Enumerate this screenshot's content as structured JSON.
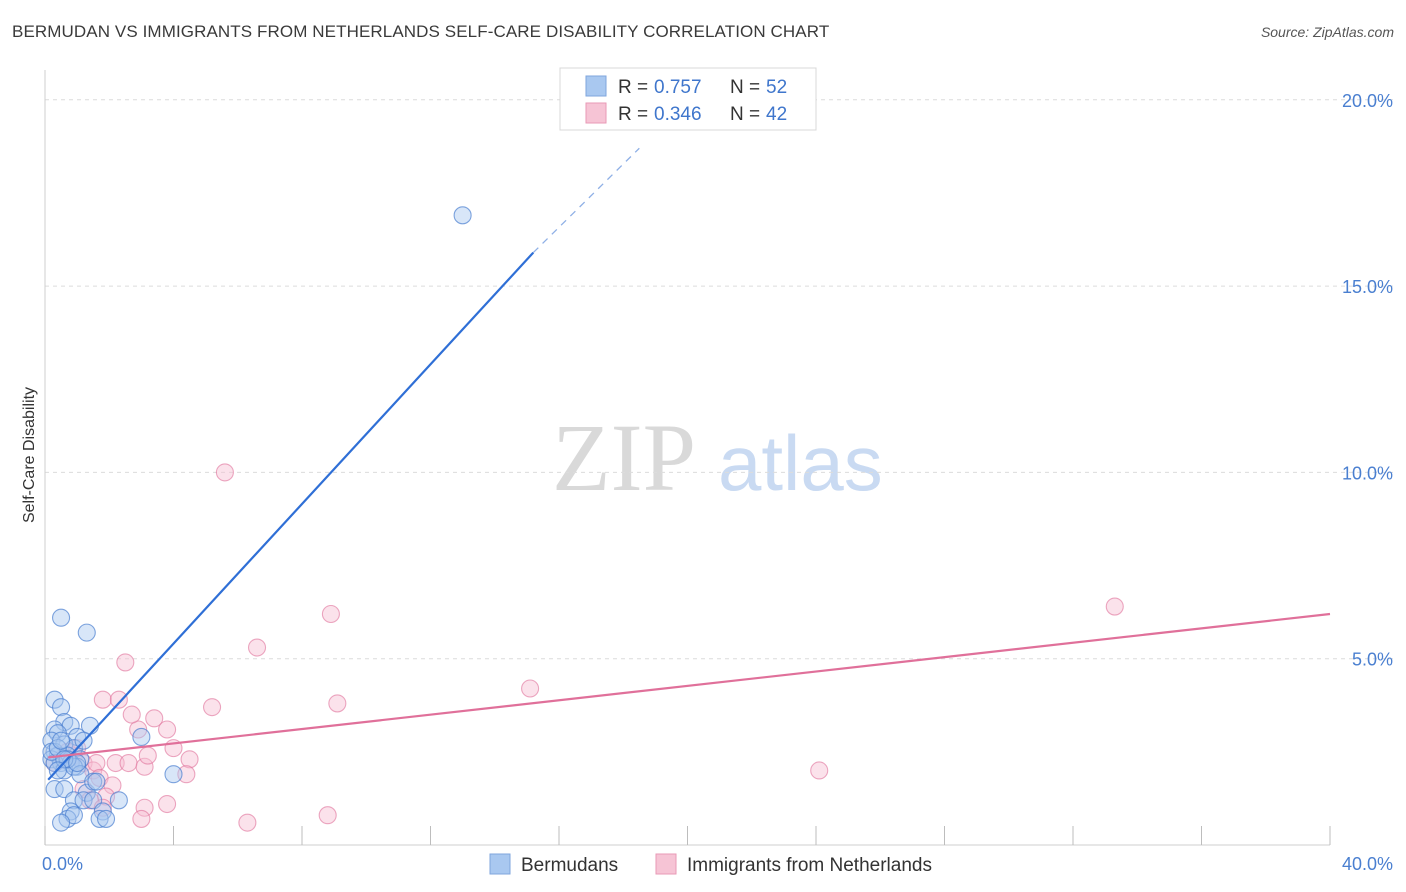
{
  "title": "BERMUDAN VS IMMIGRANTS FROM NETHERLANDS SELF-CARE DISABILITY CORRELATION CHART",
  "source": "Source: ZipAtlas.com",
  "watermark": {
    "zip": "ZIP",
    "atlas": "atlas"
  },
  "colors": {
    "blue": "#4a7fd0",
    "blue_fill": "#a9c8f0",
    "pink": "#e0709a",
    "pink_fill": "#f6bfd2",
    "grid": "#dcdcdc"
  },
  "chart_data": {
    "type": "scatter",
    "title": "BERMUDAN VS IMMIGRANTS FROM NETHERLANDS SELF-CARE DISABILITY CORRELATION CHART",
    "xlabel": "",
    "ylabel": "Self-Care Disability",
    "xlim": [
      0,
      40
    ],
    "ylim": [
      0,
      20.8
    ],
    "x_tick_labels": [
      "0.0%",
      "40.0%"
    ],
    "y_ticks": [
      5,
      10,
      15,
      20
    ],
    "y_tick_labels": [
      "5.0%",
      "10.0%",
      "15.0%",
      "20.0%"
    ],
    "legend": [
      {
        "name": "Bermudans",
        "r_label": "R =",
        "r": "0.757",
        "n_label": "N =",
        "n": "52"
      },
      {
        "name": "Immigrants from Netherlands",
        "r_label": "R =",
        "r": "0.346",
        "n_label": "N =",
        "n": "42"
      }
    ],
    "series": [
      {
        "name": "Bermudans",
        "color": "#4a7fd0",
        "trend": {
          "x0": 0.1,
          "y0": 1.75,
          "x1": 15.2,
          "y1": 15.9,
          "dash_to_x": 18.5,
          "dash_to_y": 18.7
        },
        "points": [
          [
            13.0,
            16.9
          ],
          [
            0.5,
            6.1
          ],
          [
            1.3,
            5.7
          ],
          [
            0.3,
            3.9
          ],
          [
            0.5,
            3.7
          ],
          [
            0.6,
            3.3
          ],
          [
            0.8,
            3.2
          ],
          [
            0.3,
            3.1
          ],
          [
            0.4,
            3.0
          ],
          [
            1.0,
            2.9
          ],
          [
            1.4,
            3.2
          ],
          [
            0.2,
            2.8
          ],
          [
            0.6,
            2.7
          ],
          [
            0.9,
            2.6
          ],
          [
            0.3,
            2.5
          ],
          [
            0.4,
            2.4
          ],
          [
            0.7,
            2.4
          ],
          [
            1.1,
            2.3
          ],
          [
            0.2,
            2.3
          ],
          [
            0.5,
            2.2
          ],
          [
            0.8,
            2.2
          ],
          [
            1.0,
            2.1
          ],
          [
            0.3,
            2.2
          ],
          [
            0.6,
            2.0
          ],
          [
            0.9,
            2.1
          ],
          [
            0.2,
            2.5
          ],
          [
            0.4,
            2.6
          ],
          [
            0.7,
            2.3
          ],
          [
            1.2,
            2.8
          ],
          [
            3.0,
            2.9
          ],
          [
            0.6,
            2.3
          ],
          [
            1.1,
            1.9
          ],
          [
            1.3,
            1.4
          ],
          [
            1.5,
            1.7
          ],
          [
            4.0,
            1.9
          ],
          [
            0.3,
            1.5
          ],
          [
            0.6,
            1.5
          ],
          [
            0.9,
            1.2
          ],
          [
            1.2,
            1.2
          ],
          [
            1.5,
            1.2
          ],
          [
            2.3,
            1.2
          ],
          [
            1.6,
            1.7
          ],
          [
            0.8,
            0.9
          ],
          [
            1.8,
            0.9
          ],
          [
            0.7,
            0.7
          ],
          [
            0.9,
            0.8
          ],
          [
            0.5,
            0.6
          ],
          [
            1.7,
            0.7
          ],
          [
            1.9,
            0.7
          ],
          [
            1.0,
            2.2
          ],
          [
            0.4,
            2.0
          ],
          [
            0.5,
            2.8
          ]
        ]
      },
      {
        "name": "Immigrants from Netherlands",
        "color": "#e0709a",
        "trend": {
          "x0": 0.1,
          "y0": 2.35,
          "x1": 40.0,
          "y1": 6.2
        },
        "points": [
          [
            5.6,
            10.0
          ],
          [
            8.9,
            6.2
          ],
          [
            33.3,
            6.4
          ],
          [
            6.6,
            5.3
          ],
          [
            2.5,
            4.9
          ],
          [
            15.1,
            4.2
          ],
          [
            1.8,
            3.9
          ],
          [
            2.3,
            3.9
          ],
          [
            9.1,
            3.8
          ],
          [
            5.2,
            3.7
          ],
          [
            2.9,
            3.1
          ],
          [
            3.4,
            3.4
          ],
          [
            3.8,
            3.1
          ],
          [
            2.7,
            3.5
          ],
          [
            0.5,
            2.3
          ],
          [
            0.9,
            2.4
          ],
          [
            1.2,
            2.2
          ],
          [
            1.5,
            2.0
          ],
          [
            2.2,
            2.2
          ],
          [
            2.6,
            2.2
          ],
          [
            3.1,
            2.1
          ],
          [
            3.2,
            2.4
          ],
          [
            4.0,
            2.6
          ],
          [
            4.5,
            2.3
          ],
          [
            0.3,
            2.2
          ],
          [
            0.7,
            2.5
          ],
          [
            1.0,
            2.6
          ],
          [
            1.6,
            2.2
          ],
          [
            4.4,
            1.9
          ],
          [
            24.1,
            2.0
          ],
          [
            1.7,
            1.8
          ],
          [
            2.1,
            1.6
          ],
          [
            1.2,
            1.5
          ],
          [
            1.9,
            1.3
          ],
          [
            1.4,
            1.2
          ],
          [
            3.1,
            1.0
          ],
          [
            3.8,
            1.1
          ],
          [
            1.8,
            1.0
          ],
          [
            8.8,
            0.8
          ],
          [
            3.0,
            0.7
          ],
          [
            6.3,
            0.6
          ],
          [
            0.6,
            2.3
          ]
        ]
      }
    ]
  }
}
